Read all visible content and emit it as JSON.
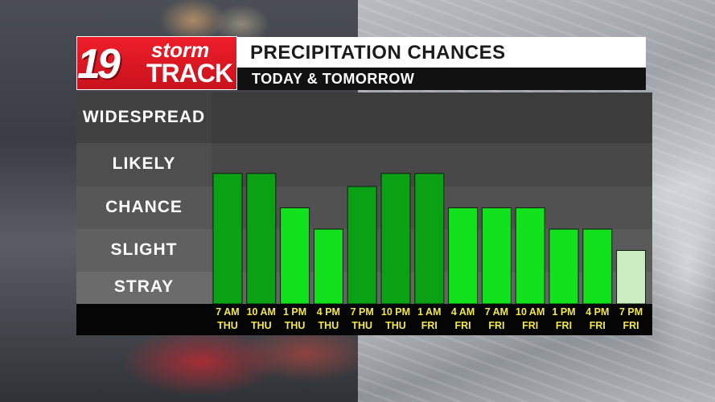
{
  "logo": {
    "number": "19",
    "word1": "storm",
    "word2": "TRACK"
  },
  "header": {
    "title": "PRECIPITATION CHANCES",
    "subtitle": "TODAY & TOMORROW"
  },
  "colors": {
    "dark_green": "#0aa114",
    "bright_green": "#11e21d",
    "pale_green": "#c9edc1"
  },
  "chart_data": {
    "type": "bar",
    "levels": [
      "WIDESPREAD",
      "LIKELY",
      "CHANCE",
      "SLIGHT",
      "STRAY"
    ],
    "categories": [
      {
        "time": "7 AM",
        "day": "THU"
      },
      {
        "time": "10 AM",
        "day": "THU"
      },
      {
        "time": "1 PM",
        "day": "THU"
      },
      {
        "time": "4 PM",
        "day": "THU"
      },
      {
        "time": "7 PM",
        "day": "THU"
      },
      {
        "time": "10 PM",
        "day": "THU"
      },
      {
        "time": "1 AM",
        "day": "FRI"
      },
      {
        "time": "4 AM",
        "day": "FRI"
      },
      {
        "time": "7 AM",
        "day": "FRI"
      },
      {
        "time": "10 AM",
        "day": "FRI"
      },
      {
        "time": "1 PM",
        "day": "FRI"
      },
      {
        "time": "4 PM",
        "day": "FRI"
      },
      {
        "time": "7 PM",
        "day": "FRI"
      }
    ],
    "values": [
      3.3,
      3.3,
      2.5,
      2.0,
      3.0,
      3.3,
      3.3,
      2.5,
      2.5,
      2.5,
      2.0,
      2.0,
      1.5
    ],
    "bar_colors": [
      "dark_green",
      "dark_green",
      "bright_green",
      "bright_green",
      "dark_green",
      "dark_green",
      "dark_green",
      "bright_green",
      "bright_green",
      "bright_green",
      "bright_green",
      "bright_green",
      "pale_green"
    ],
    "ylim": [
      0,
      5
    ],
    "grid": true,
    "legend": "none"
  }
}
